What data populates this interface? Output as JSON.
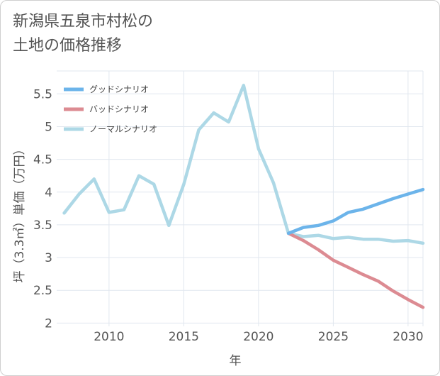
{
  "title_lines": [
    "新潟県五泉市村松の",
    "土地の価格推移"
  ],
  "chart_data": {
    "type": "line",
    "xlabel": "年",
    "ylabel": "坪（3.3㎡）単価（万円）",
    "xlim": [
      2006.5,
      2031
    ],
    "ylim": [
      1.95,
      5.85
    ],
    "xticks": [
      2010,
      2015,
      2020,
      2025,
      2030
    ],
    "yticks": [
      2,
      2.5,
      3,
      3.5,
      4,
      4.5,
      5,
      5.5
    ],
    "ytick_labels": [
      "2",
      "2.5",
      "3",
      "3.5",
      "4",
      "4.5",
      "5",
      "5.5"
    ],
    "grid": true,
    "legend_position": "top-left",
    "series": [
      {
        "name": "グッドシナリオ",
        "color": "#6cb4ea",
        "x": [
          2022,
          2023,
          2024,
          2025,
          2026,
          2027,
          2028,
          2029,
          2030,
          2031
        ],
        "y": [
          3.37,
          3.46,
          3.49,
          3.56,
          3.69,
          3.74,
          3.82,
          3.9,
          3.97,
          4.04
        ]
      },
      {
        "name": "バッドシナリオ",
        "color": "#dc8b92",
        "x": [
          2022,
          2023,
          2024,
          2025,
          2026,
          2027,
          2028,
          2029,
          2030,
          2031
        ],
        "y": [
          3.37,
          3.26,
          3.12,
          2.96,
          2.85,
          2.74,
          2.64,
          2.49,
          2.36,
          2.24
        ]
      },
      {
        "name": "ノーマルシナリオ",
        "color": "#add8e6",
        "x": [
          2007,
          2008,
          2009,
          2010,
          2011,
          2012,
          2013,
          2014,
          2015,
          2016,
          2017,
          2018,
          2019,
          2020,
          2021,
          2022,
          2023,
          2024,
          2025,
          2026,
          2027,
          2028,
          2029,
          2030,
          2031
        ],
        "y": [
          3.68,
          3.97,
          4.2,
          3.69,
          3.73,
          4.25,
          4.12,
          3.49,
          4.12,
          4.95,
          5.21,
          5.07,
          5.63,
          4.66,
          4.14,
          3.37,
          3.32,
          3.34,
          3.29,
          3.31,
          3.28,
          3.28,
          3.25,
          3.26,
          3.22
        ]
      }
    ]
  }
}
